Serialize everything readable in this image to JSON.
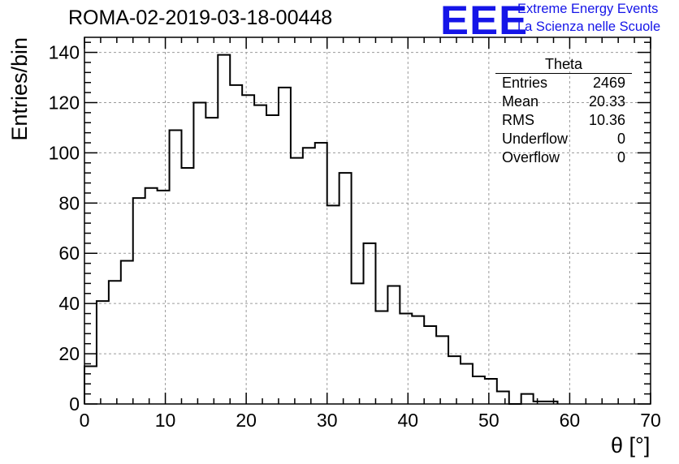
{
  "header": {
    "title": "ROMA-02-2019-03-18-00448",
    "logo_text": "EEE",
    "logo_line1": "Extreme Energy Events",
    "logo_line2": "La Scienza nelle Scuole"
  },
  "stats": {
    "title": "Theta",
    "rows": [
      {
        "label": "Entries",
        "value": "2469"
      },
      {
        "label": "Mean",
        "value": "20.33"
      },
      {
        "label": "RMS",
        "value": "10.36"
      },
      {
        "label": "Underflow",
        "value": "0"
      },
      {
        "label": "Overflow",
        "value": "0"
      }
    ]
  },
  "chart_data": {
    "type": "bar",
    "style": "step-histogram",
    "title": "ROMA-02-2019-03-18-00448",
    "xlabel": "θ [°]",
    "ylabel": "Entries/bin",
    "xlim": [
      0,
      70
    ],
    "ylim": [
      0,
      146
    ],
    "x_ticks": [
      0,
      10,
      20,
      30,
      40,
      50,
      60,
      70
    ],
    "y_ticks": [
      0,
      20,
      40,
      60,
      80,
      100,
      120,
      140
    ],
    "grid": true,
    "bin_width": 1.5,
    "bin_edges_start": 0,
    "values": [
      15,
      41,
      49,
      57,
      82,
      86,
      85,
      109,
      94,
      120,
      114,
      139,
      127,
      123,
      119,
      115,
      126,
      98,
      102,
      104,
      79,
      92,
      48,
      64,
      37,
      47,
      36,
      35,
      31,
      27,
      19,
      16,
      11,
      10,
      5,
      0,
      4,
      1,
      1,
      0,
      0,
      0,
      0,
      0,
      0,
      0
    ],
    "line_color": "#000000",
    "grid_color": "#9a9a9a"
  }
}
